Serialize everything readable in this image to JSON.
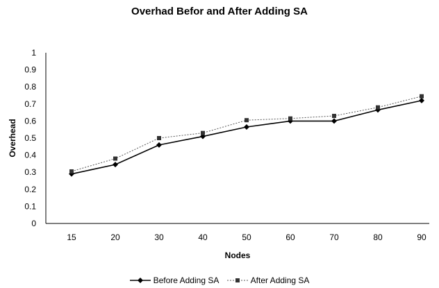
{
  "chart_data": {
    "type": "line",
    "title": "Overhad Befor and After Adding SA",
    "xlabel": "Nodes",
    "ylabel": "Overhead",
    "categories": [
      "15",
      "20",
      "30",
      "40",
      "50",
      "60",
      "70",
      "80",
      "90"
    ],
    "ylim": [
      0,
      1
    ],
    "yticks": [
      "0",
      "0.1",
      "0.2",
      "0.3",
      "0.4",
      "0.5",
      "0.6",
      "0.7",
      "0.8",
      "0.9",
      "1"
    ],
    "grid": false,
    "legend": "bottom",
    "series": [
      {
        "name": "Before Adding SA",
        "marker": "diamond",
        "color": "#000000",
        "values": [
          0.29,
          0.345,
          0.46,
          0.51,
          0.565,
          0.6,
          0.6,
          0.665,
          0.72
        ]
      },
      {
        "name": "After Adding SA",
        "marker": "square",
        "color": "#555555",
        "values": [
          0.305,
          0.38,
          0.5,
          0.53,
          0.605,
          0.615,
          0.63,
          0.68,
          0.745
        ]
      }
    ]
  }
}
